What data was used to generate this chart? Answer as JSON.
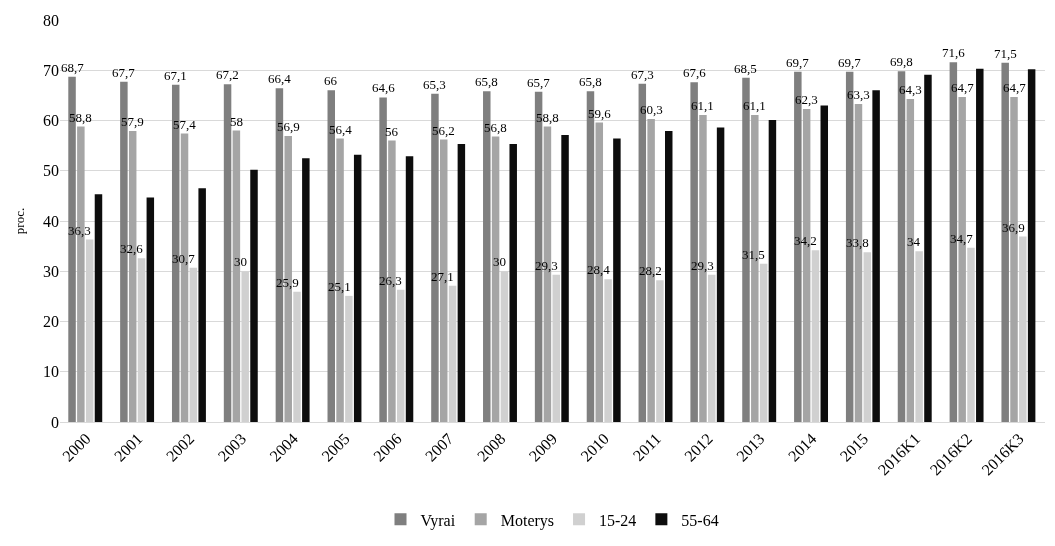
{
  "chart_data": {
    "type": "bar",
    "ylabel": "proc.",
    "categories": [
      "2000",
      "2001",
      "2002",
      "2003",
      "2004",
      "2005",
      "2006",
      "2007",
      "2008",
      "2009",
      "2010",
      "2011",
      "2012",
      "2013",
      "2014",
      "2015",
      "2016K1",
      "2016K2",
      "2016K3"
    ],
    "series": [
      {
        "name": "Vyrai",
        "color": "#7f7f7f",
        "values": [
          68.7,
          67.7,
          67.1,
          67.2,
          66.4,
          66,
          64.6,
          65.3,
          65.8,
          65.7,
          65.8,
          67.3,
          67.6,
          68.5,
          69.7,
          69.7,
          69.8,
          71.6,
          71.5
        ],
        "value_labels": [
          "68,7",
          "67,7",
          "67,1",
          "67,2",
          "66,4",
          "66",
          "64,6",
          "65,3",
          "65,8",
          "65,7",
          "65,8",
          "67,3",
          "67,6",
          "68,5",
          "69,7",
          "69,7",
          "69,8",
          "71,6",
          "71,5"
        ]
      },
      {
        "name": "Moterys",
        "color": "#a5a5a5",
        "values": [
          58.8,
          57.9,
          57.4,
          58,
          56.9,
          56.4,
          56,
          56.2,
          56.8,
          58.8,
          59.6,
          60.3,
          61.1,
          61.1,
          62.3,
          63.3,
          64.3,
          64.7,
          64.7
        ],
        "value_labels": [
          "58,8",
          "57,9",
          "57,4",
          "58",
          "56,9",
          "56,4",
          "56",
          "56,2",
          "56,8",
          "58,8",
          "59,6",
          "60,3",
          "61,1",
          "61,1",
          "62,3",
          "63,3",
          "64,3",
          "64,7",
          "64,7"
        ]
      },
      {
        "name": "15-24",
        "color": "#d0d0d0",
        "values": [
          36.3,
          32.6,
          30.7,
          30,
          25.9,
          25.1,
          26.3,
          27.1,
          30,
          29.3,
          28.4,
          28.2,
          29.3,
          31.5,
          34.2,
          33.8,
          34,
          34.7,
          36.9
        ],
        "value_labels": [
          "36,3",
          "32,6",
          "30,7",
          "30",
          "25,9",
          "25,1",
          "26,3",
          "27,1",
          "30",
          "29,3",
          "28,4",
          "28,2",
          "29,3",
          "31,5",
          "34,2",
          "33,8",
          "34",
          "34,7",
          "36,9"
        ]
      },
      {
        "name": "55-64",
        "color": "#0d0d0d",
        "values": [
          45.3,
          44.7,
          46.5,
          50.2,
          52.5,
          53.2,
          52.9,
          55.3,
          55.3,
          57.1,
          56.4,
          57.9,
          58.6,
          60.1,
          63.0,
          66.0,
          69.1,
          70.3,
          70.2
        ]
      }
    ],
    "ylim": [
      0,
      80
    ],
    "yticks": [
      0,
      10,
      20,
      30,
      40,
      50,
      60,
      70,
      80
    ],
    "grid": "y",
    "legend": "bottom"
  }
}
